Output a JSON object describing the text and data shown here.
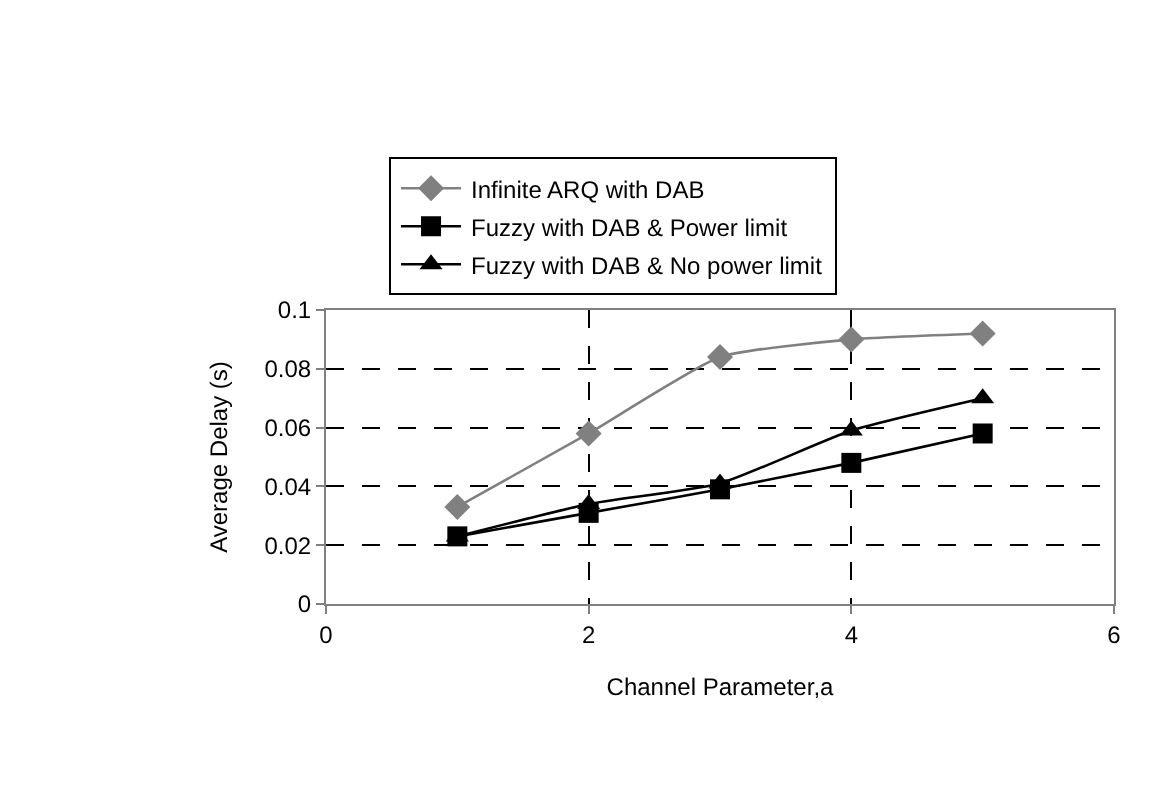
{
  "chart_data": {
    "type": "line",
    "xlabel": "Channel Parameter,a",
    "ylabel": "Average Delay (s)",
    "x": [
      1,
      2,
      3,
      4,
      5
    ],
    "series": [
      {
        "name": "Infinite ARQ with DAB",
        "color": "#808080",
        "marker": "diamond",
        "values": [
          0.033,
          0.058,
          0.084,
          0.09,
          0.092
        ]
      },
      {
        "name": "Fuzzy with DAB & Power limit",
        "color": "#000000",
        "marker": "square",
        "values": [
          0.023,
          0.031,
          0.039,
          0.048,
          0.058
        ]
      },
      {
        "name": "Fuzzy with DAB & No power limit",
        "color": "#000000",
        "marker": "triangle",
        "values": [
          0.023,
          0.034,
          0.041,
          0.059,
          0.07
        ]
      }
    ],
    "xlim": [
      0,
      6
    ],
    "xticks": [
      0,
      2,
      4,
      6
    ],
    "ylim": [
      0,
      0.1
    ],
    "yticks": [
      0,
      0.02,
      0.04,
      0.06,
      0.08,
      0.1
    ],
    "grid": true,
    "legend": "top",
    "line_style": "solid"
  }
}
